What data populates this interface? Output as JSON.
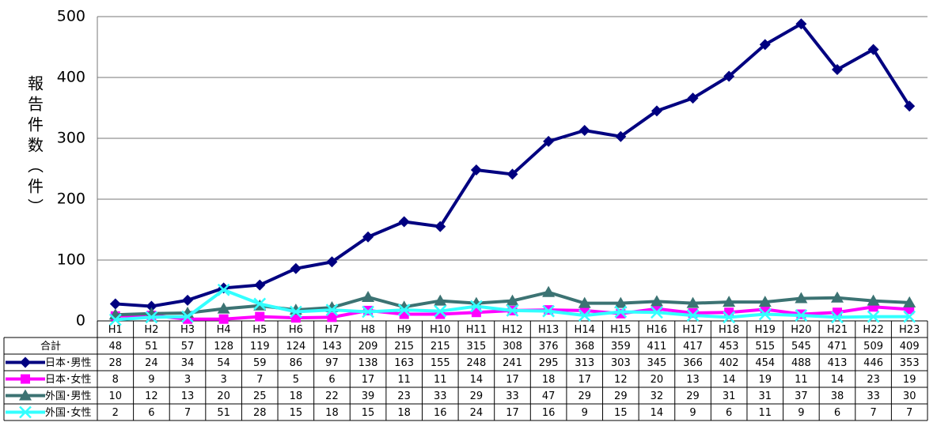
{
  "chart_data": {
    "type": "line",
    "y_label": "報告件数（件）",
    "categories": [
      "H1",
      "H2",
      "H3",
      "H4",
      "H5",
      "H6",
      "H7",
      "H8",
      "H9",
      "H10",
      "H11",
      "H12",
      "H13",
      "H14",
      "H15",
      "H16",
      "H17",
      "H18",
      "H19",
      "H20",
      "H21",
      "H22",
      "H23"
    ],
    "ylim": [
      0,
      500
    ],
    "yticks": [
      0,
      100,
      200,
      300,
      400,
      500
    ],
    "grid": true,
    "table_total": {
      "name": "合計",
      "values": [
        48,
        51,
        57,
        128,
        119,
        124,
        143,
        209,
        215,
        215,
        315,
        308,
        376,
        368,
        359,
        411,
        417,
        453,
        515,
        545,
        471,
        509,
        409
      ]
    },
    "series": [
      {
        "name": "日本･男性",
        "color": "#000080",
        "marker": "diamond",
        "values": [
          28,
          24,
          34,
          54,
          59,
          86,
          97,
          138,
          163,
          155,
          248,
          241,
          295,
          313,
          303,
          345,
          366,
          402,
          454,
          488,
          413,
          446,
          353
        ]
      },
      {
        "name": "日本･女性",
        "color": "#ff00ff",
        "marker": "square",
        "values": [
          8,
          9,
          3,
          3,
          7,
          5,
          6,
          17,
          11,
          11,
          14,
          17,
          18,
          17,
          12,
          20,
          13,
          14,
          19,
          11,
          14,
          23,
          19
        ]
      },
      {
        "name": "外国･男性",
        "color": "#3c7373",
        "marker": "triangle",
        "values": [
          10,
          12,
          13,
          20,
          25,
          18,
          22,
          39,
          23,
          33,
          29,
          33,
          47,
          29,
          29,
          32,
          29,
          31,
          31,
          37,
          38,
          33,
          30
        ]
      },
      {
        "name": "外国･女性",
        "color": "#33ffff",
        "marker": "x",
        "values": [
          2,
          6,
          7,
          51,
          28,
          15,
          18,
          15,
          18,
          16,
          24,
          17,
          16,
          9,
          15,
          14,
          9,
          6,
          11,
          9,
          6,
          7,
          7
        ]
      }
    ]
  }
}
